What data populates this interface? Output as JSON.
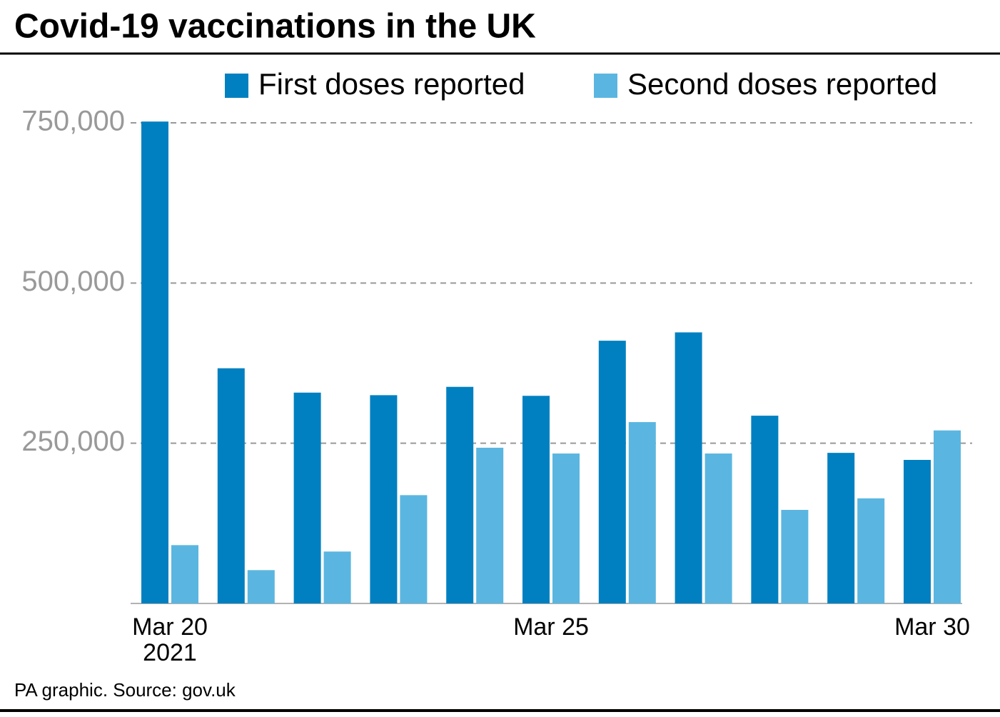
{
  "chart_data": {
    "type": "bar",
    "title": "Covid-19 vaccinations in the UK",
    "source": "PA graphic. Source: gov.uk",
    "categories": [
      "Mar 20\n2021",
      null,
      null,
      null,
      null,
      "Mar 25",
      null,
      null,
      null,
      null,
      "Mar 30"
    ],
    "series": [
      {
        "name": "First doses reported",
        "color": "#0080c0",
        "values": [
          752000,
          367000,
          329000,
          325000,
          338000,
          324000,
          410000,
          423000,
          293000,
          235000,
          224000
        ]
      },
      {
        "name": "Second doses reported",
        "color": "#5ab6e0",
        "values": [
          91000,
          52000,
          81000,
          169000,
          243000,
          234000,
          283000,
          234000,
          146000,
          164000,
          270000
        ]
      }
    ],
    "ylim": [
      0,
      750000
    ],
    "yticks": [
      {
        "value": 250000,
        "label": "250,000"
      },
      {
        "value": 500000,
        "label": "500,000"
      },
      {
        "value": 750000,
        "label": "750,000"
      }
    ],
    "grid": true
  }
}
